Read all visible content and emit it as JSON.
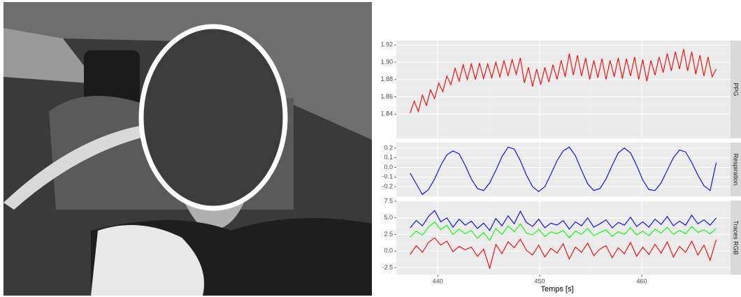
{
  "chart_data": [
    {
      "type": "line",
      "strip": "PPG",
      "ylim": [
        1.812,
        1.925
      ],
      "yticks": [
        1.84,
        1.86,
        1.88,
        {
          "value": 1.9,
          "label": "1.90"
        },
        1.92
      ],
      "x": [
        437.3,
        437.7,
        438.1,
        438.5,
        438.9,
        439.3,
        439.7,
        440.1,
        440.5,
        440.9,
        441.3,
        441.7,
        442.1,
        442.5,
        442.9,
        443.3,
        443.7,
        444.1,
        444.5,
        444.9,
        445.3,
        445.7,
        446.1,
        446.5,
        446.9,
        447.3,
        447.7,
        448.1,
        448.5,
        448.9,
        449.3,
        449.7,
        450.1,
        450.5,
        450.9,
        451.3,
        451.7,
        452.1,
        452.5,
        452.9,
        453.3,
        453.7,
        454.1,
        454.5,
        454.9,
        455.3,
        455.7,
        456.1,
        456.5,
        456.9,
        457.3,
        457.7,
        458.1,
        458.5,
        458.9,
        459.3,
        459.7,
        460.1,
        460.5,
        460.9,
        461.3,
        461.7,
        462.1,
        462.5,
        462.9,
        463.3,
        463.7,
        464.1,
        464.5,
        464.9,
        465.3,
        465.7,
        466.1,
        466.5,
        466.9,
        467.3
      ],
      "series": [
        {
          "color": "#ff0000",
          "values": [
            1.841,
            1.855,
            1.843,
            1.862,
            1.85,
            1.868,
            1.858,
            1.876,
            1.866,
            1.884,
            1.874,
            1.893,
            1.878,
            1.897,
            1.88,
            1.898,
            1.88,
            1.899,
            1.881,
            1.898,
            1.882,
            1.9,
            1.883,
            1.902,
            1.884,
            1.903,
            1.886,
            1.905,
            1.876,
            1.894,
            1.872,
            1.892,
            1.874,
            1.894,
            1.877,
            1.897,
            1.88,
            1.902,
            1.883,
            1.91,
            1.885,
            1.908,
            1.884,
            1.905,
            1.88,
            1.902,
            1.882,
            1.904,
            1.88,
            1.902,
            1.883,
            1.905,
            1.881,
            1.904,
            1.884,
            1.906,
            1.88,
            1.903,
            1.878,
            1.902,
            1.885,
            1.906,
            1.888,
            1.91,
            1.89,
            1.912,
            1.892,
            1.915,
            1.89,
            1.912,
            1.886,
            1.908,
            1.884,
            1.906,
            1.883,
            1.892
          ]
        }
      ]
    },
    {
      "type": "line",
      "strip": "Respiration",
      "ylim": [
        -0.3,
        0.257
      ],
      "yticks": [
        -0.2,
        -0.1,
        {
          "value": 0,
          "label": "0.0"
        },
        0.1,
        0.2
      ],
      "x": [
        437.3,
        437.9,
        438.5,
        439.1,
        439.7,
        440.3,
        440.9,
        441.5,
        442.1,
        442.7,
        443.3,
        443.9,
        444.5,
        445.1,
        445.7,
        446.3,
        446.9,
        447.5,
        448.1,
        448.7,
        449.3,
        449.9,
        450.5,
        451.1,
        451.7,
        452.3,
        452.9,
        453.5,
        454.1,
        454.7,
        455.3,
        455.9,
        456.5,
        457.1,
        457.7,
        458.3,
        458.9,
        459.5,
        460.1,
        460.7,
        461.3,
        461.9,
        462.5,
        463.1,
        463.7,
        464.3,
        464.9,
        465.5,
        466.1,
        466.7,
        467.3
      ],
      "series": [
        {
          "color": "#0000ff",
          "values": [
            -0.06,
            -0.17,
            -0.28,
            -0.23,
            -0.12,
            0.02,
            0.13,
            0.17,
            0.14,
            0.02,
            -0.12,
            -0.22,
            -0.24,
            -0.16,
            -0.03,
            0.11,
            0.21,
            0.19,
            0.07,
            -0.08,
            -0.2,
            -0.25,
            -0.2,
            -0.07,
            0.07,
            0.17,
            0.21,
            0.12,
            -0.03,
            -0.17,
            -0.24,
            -0.22,
            -0.12,
            0.02,
            0.15,
            0.2,
            0.15,
            0.02,
            -0.13,
            -0.23,
            -0.24,
            -0.16,
            -0.03,
            0.1,
            0.18,
            0.16,
            0.05,
            -0.08,
            -0.19,
            -0.24,
            0.05
          ]
        }
      ]
    },
    {
      "type": "line",
      "strip": "Traces RGB",
      "ylim": [
        -3.55,
        7.6
      ],
      "yticks": [
        -2.5,
        {
          "value": 0,
          "label": "0.0"
        },
        2.5,
        {
          "value": 5,
          "label": "5.0"
        },
        7.5
      ],
      "xlim": [
        435.95,
        468.7
      ],
      "xticks": [
        440,
        450,
        460
      ],
      "xlabel": "Temps [s]",
      "x": [
        437.3,
        437.9,
        438.5,
        439.1,
        439.7,
        440.3,
        440.9,
        441.5,
        442.1,
        442.7,
        443.3,
        443.9,
        444.5,
        445.1,
        445.7,
        446.3,
        446.9,
        447.5,
        448.1,
        448.7,
        449.3,
        449.9,
        450.5,
        451.1,
        451.7,
        452.3,
        452.9,
        453.5,
        454.1,
        454.7,
        455.3,
        455.9,
        456.5,
        457.1,
        457.7,
        458.3,
        458.9,
        459.5,
        460.1,
        460.7,
        461.3,
        461.9,
        462.5,
        463.1,
        463.7,
        464.3,
        464.9,
        465.5,
        466.1,
        466.7,
        467.3
      ],
      "series": [
        {
          "color": "#0000ff",
          "values": [
            3.5,
            4.6,
            3.8,
            5.2,
            6.1,
            4.4,
            5.0,
            3.6,
            4.8,
            3.9,
            4.5,
            3.4,
            4.2,
            3.1,
            4.9,
            3.8,
            5.3,
            4.1,
            6.0,
            4.3,
            3.7,
            4.8,
            3.5,
            4.2,
            3.9,
            4.6,
            3.3,
            4.4,
            3.8,
            5.0,
            3.6,
            4.1,
            4.7,
            3.5,
            4.3,
            3.9,
            5.1,
            3.7,
            4.4,
            3.6,
            4.8,
            4.0,
            5.2,
            3.8,
            4.5,
            3.9,
            5.4,
            4.1,
            4.7,
            3.9,
            5.0
          ]
        },
        {
          "color": "#00ff00",
          "values": [
            2.1,
            3.0,
            2.4,
            3.6,
            4.4,
            3.2,
            3.9,
            2.5,
            3.3,
            2.6,
            3.1,
            1.9,
            2.8,
            1.6,
            3.4,
            2.5,
            3.8,
            2.9,
            4.1,
            2.7,
            2.4,
            3.3,
            2.2,
            2.9,
            2.6,
            3.1,
            2.0,
            3.0,
            2.5,
            3.4,
            2.3,
            2.8,
            3.2,
            2.2,
            2.9,
            2.5,
            3.5,
            2.4,
            3.0,
            2.3,
            3.3,
            2.7,
            3.6,
            2.5,
            3.1,
            2.6,
            3.7,
            2.8,
            3.2,
            2.6,
            3.4
          ]
        },
        {
          "color": "#ff0000",
          "values": [
            -0.5,
            0.8,
            -0.2,
            1.3,
            2.0,
            0.9,
            1.5,
            -0.1,
            0.7,
            0.2,
            0.6,
            -0.8,
            0.3,
            -2.6,
            1.0,
            -0.4,
            1.4,
            0.5,
            1.8,
            0.1,
            -0.6,
            0.9,
            -0.9,
            0.4,
            -0.3,
            1.1,
            -1.2,
            0.6,
            -0.2,
            1.2,
            -0.7,
            0.3,
            0.8,
            -1.0,
            0.5,
            -0.4,
            1.3,
            -0.8,
            0.6,
            -0.5,
            1.0,
            -0.3,
            1.4,
            -0.9,
            0.7,
            -0.2,
            1.5,
            -0.6,
            0.9,
            -1.4,
            1.7
          ]
        }
      ]
    }
  ]
}
